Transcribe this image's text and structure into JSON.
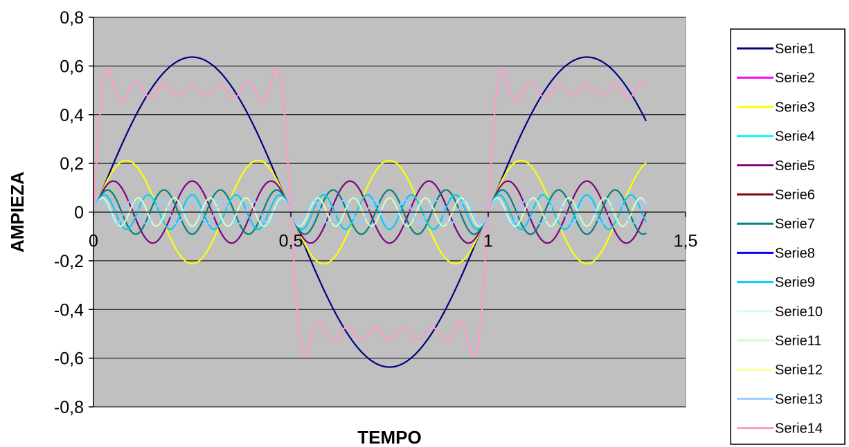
{
  "chart_data": {
    "type": "line",
    "title": "",
    "xlabel": "TEMPO",
    "ylabel": "AMPIEZA",
    "xlim": [
      0,
      1.5
    ],
    "ylim": [
      -0.8,
      0.8
    ],
    "x_ticks": [
      {
        "value": 0,
        "label": "0"
      },
      {
        "value": 0.5,
        "label": "0,5"
      },
      {
        "value": 1,
        "label": "1"
      },
      {
        "value": 1.5,
        "label": "1,5"
      }
    ],
    "y_ticks": [
      {
        "value": 0.8,
        "label": "0,8"
      },
      {
        "value": 0.6,
        "label": "0,6"
      },
      {
        "value": 0.4,
        "label": "0,4"
      },
      {
        "value": 0.2,
        "label": "0,2"
      },
      {
        "value": 0,
        "label": "0"
      },
      {
        "value": -0.2,
        "label": "-0,2"
      },
      {
        "value": -0.4,
        "label": "-0,4"
      },
      {
        "value": -0.6,
        "label": "-0,6"
      },
      {
        "value": -0.8,
        "label": "-0,8"
      }
    ],
    "grid": "horizontal",
    "plot_background": "#c0c0c0",
    "legend_position": "right",
    "x_range": [
      0,
      1.4
    ],
    "series": [
      {
        "name": "Serie1",
        "color": "#000080",
        "amplitude": 0.6366,
        "harmonic": 1
      },
      {
        "name": "Serie2",
        "color": "#ff00ff",
        "amplitude": 0,
        "harmonic": 2
      },
      {
        "name": "Serie3",
        "color": "#ffff00",
        "amplitude": 0.2122,
        "harmonic": 3
      },
      {
        "name": "Serie4",
        "color": "#00ffff",
        "amplitude": 0,
        "harmonic": 4
      },
      {
        "name": "Serie5",
        "color": "#800080",
        "amplitude": 0.1273,
        "harmonic": 5
      },
      {
        "name": "Serie6",
        "color": "#800000",
        "amplitude": 0,
        "harmonic": 6
      },
      {
        "name": "Serie7",
        "color": "#008080",
        "amplitude": 0.0909,
        "harmonic": 7
      },
      {
        "name": "Serie8",
        "color": "#0000ff",
        "amplitude": 0,
        "harmonic": 8
      },
      {
        "name": "Serie9",
        "color": "#00ccff",
        "amplitude": 0.0707,
        "harmonic": 9
      },
      {
        "name": "Serie10",
        "color": "#ccffff",
        "amplitude": 0,
        "harmonic": 10
      },
      {
        "name": "Serie11",
        "color": "#ccffcc",
        "amplitude": 0.0579,
        "harmonic": 11
      },
      {
        "name": "Serie12",
        "color": "#ffff99",
        "amplitude": 0,
        "harmonic": 12
      },
      {
        "name": "Serie13",
        "color": "#99ccff",
        "amplitude": 0.049,
        "harmonic": 13
      },
      {
        "name": "Serie14",
        "color": "#ff99cc",
        "amplitude": 0.5,
        "harmonic": 0,
        "note": "sum of Serie1..Serie13 (square wave approximation)"
      }
    ]
  }
}
